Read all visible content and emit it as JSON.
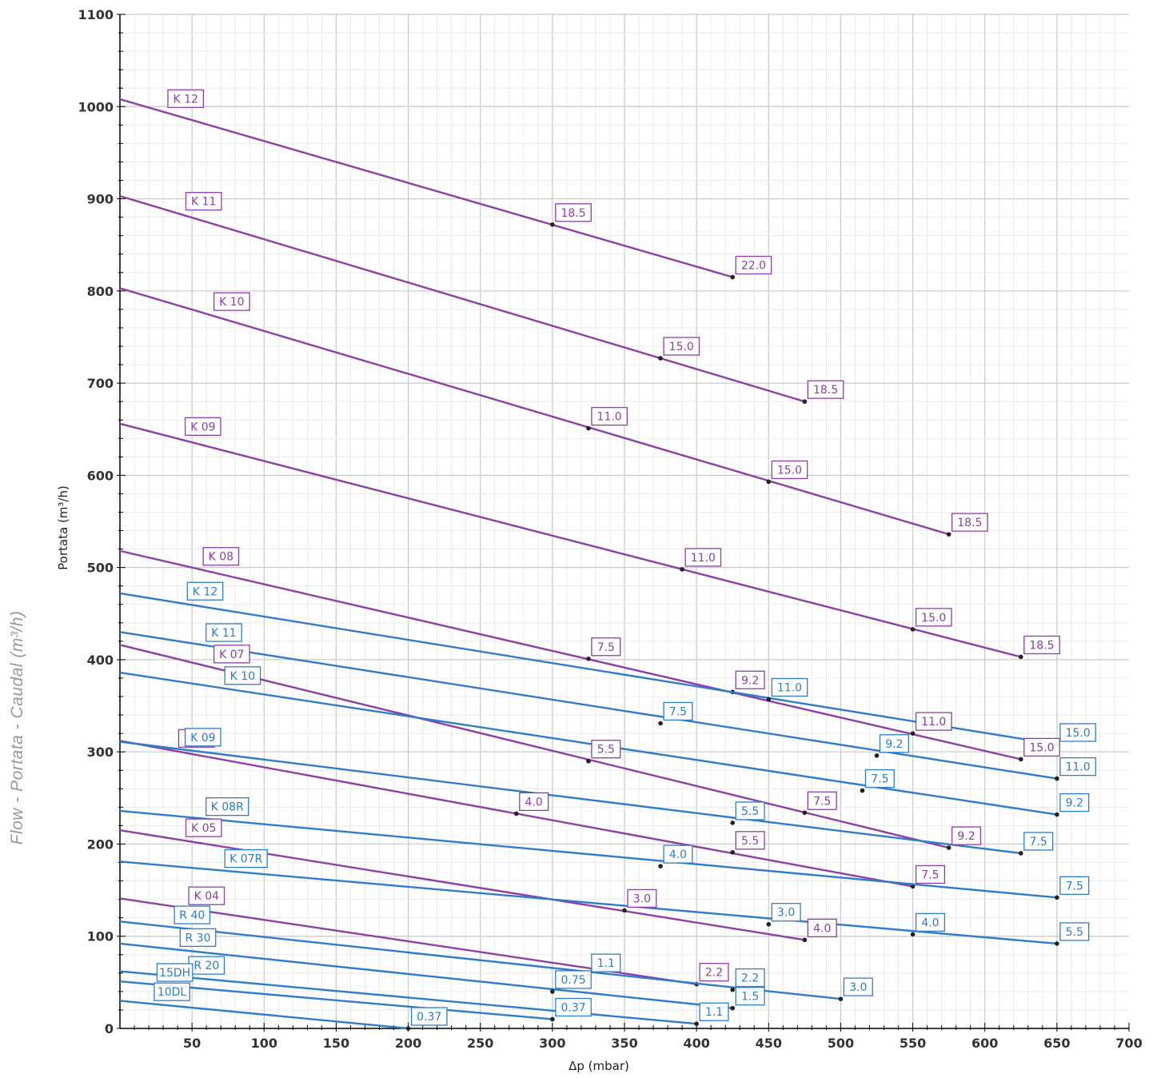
{
  "side_caption": "Flow - Portata - Caudal (m³/h)",
  "colors": {
    "purple": "#8e3fa6",
    "blue": "#2f7dc8",
    "grid_major": "#c9c9c9",
    "grid_minor": "#e6e6e6"
  },
  "chart_data": {
    "type": "line",
    "xlabel": "Δp (mbar)",
    "ylabel": "Portata (m³/h)",
    "xlim": [
      0,
      700
    ],
    "ylim": [
      0,
      1100
    ],
    "x_ticks": [
      50,
      100,
      150,
      200,
      250,
      300,
      350,
      400,
      450,
      500,
      550,
      600,
      650,
      700
    ],
    "y_ticks": [
      0,
      100,
      200,
      300,
      400,
      500,
      600,
      700,
      800,
      900,
      1000,
      1100
    ],
    "grid": true,
    "series": [
      {
        "name": "K 12",
        "color": "purple",
        "x": [
          0,
          425
        ],
        "y": [
          1008,
          815
        ],
        "points": [
          {
            "x": 300,
            "y": 872,
            "label": "18.5"
          },
          {
            "x": 425,
            "y": 815,
            "label": "22.0"
          }
        ]
      },
      {
        "name": "K 11",
        "color": "purple",
        "x": [
          0,
          475
        ],
        "y": [
          903,
          680
        ],
        "points": [
          {
            "x": 375,
            "y": 727,
            "label": "15.0"
          },
          {
            "x": 475,
            "y": 680,
            "label": "18.5"
          }
        ]
      },
      {
        "name": "K 10",
        "color": "purple",
        "x": [
          0,
          575
        ],
        "y": [
          803,
          536
        ],
        "points": [
          {
            "x": 325,
            "y": 651,
            "label": "11.0"
          },
          {
            "x": 450,
            "y": 593,
            "label": "15.0"
          },
          {
            "x": 575,
            "y": 536,
            "label": "18.5"
          }
        ]
      },
      {
        "name": "K 09",
        "color": "purple",
        "x": [
          0,
          625
        ],
        "y": [
          656,
          403
        ],
        "points": [
          {
            "x": 390,
            "y": 498,
            "label": "11.0"
          },
          {
            "x": 550,
            "y": 433,
            "label": "15.0"
          },
          {
            "x": 625,
            "y": 403,
            "label": "18.5"
          }
        ]
      },
      {
        "name": "K 08",
        "color": "purple",
        "x": [
          0,
          625
        ],
        "y": [
          518,
          292
        ],
        "points": [
          {
            "x": 325,
            "y": 401,
            "label": "7.5"
          },
          {
            "x": 425,
            "y": 365,
            "label": "9.2"
          },
          {
            "x": 550,
            "y": 320,
            "label": "11.0"
          },
          {
            "x": 625,
            "y": 292,
            "label": "15.0"
          }
        ]
      },
      {
        "name": "K 07",
        "color": "purple",
        "x": [
          0,
          575
        ],
        "y": [
          416,
          196
        ],
        "points": [
          {
            "x": 325,
            "y": 290,
            "label": "5.5"
          },
          {
            "x": 475,
            "y": 234,
            "label": "7.5"
          },
          {
            "x": 575,
            "y": 196,
            "label": "9.2"
          }
        ]
      },
      {
        "name": "K 06",
        "color": "purple",
        "x": [
          0,
          550
        ],
        "y": [
          312,
          154
        ],
        "points": [
          {
            "x": 275,
            "y": 233,
            "label": "4.0"
          },
          {
            "x": 425,
            "y": 191,
            "label": "5.5"
          },
          {
            "x": 550,
            "y": 154,
            "label": "7.5"
          }
        ]
      },
      {
        "name": "K 05",
        "color": "purple",
        "x": [
          0,
          475
        ],
        "y": [
          215,
          96
        ],
        "points": [
          {
            "x": 350,
            "y": 128,
            "label": "3.0"
          },
          {
            "x": 475,
            "y": 96,
            "label": "4.0"
          }
        ]
      },
      {
        "name": "K 04",
        "color": "purple",
        "x": [
          0,
          400
        ],
        "y": [
          141,
          48
        ],
        "points": [
          {
            "x": 400,
            "y": 48,
            "label": "2.2"
          }
        ]
      },
      {
        "name": "K 12",
        "color": "blue",
        "x": [
          0,
          650
        ],
        "y": [
          472,
          308
        ],
        "points": [
          {
            "x": 450,
            "y": 357,
            "label": "11.0"
          },
          {
            "x": 650,
            "y": 308,
            "label": "15.0"
          }
        ]
      },
      {
        "name": "K 11",
        "color": "blue",
        "x": [
          0,
          650
        ],
        "y": [
          430,
          271
        ],
        "points": [
          {
            "x": 375,
            "y": 331,
            "label": "7.5"
          },
          {
            "x": 525,
            "y": 296,
            "label": "9.2"
          },
          {
            "x": 650,
            "y": 271,
            "label": "11.0"
          }
        ]
      },
      {
        "name": "K 10",
        "color": "blue",
        "x": [
          0,
          650
        ],
        "y": [
          386,
          232
        ],
        "points": [
          {
            "x": 515,
            "y": 258,
            "label": "7.5"
          },
          {
            "x": 650,
            "y": 232,
            "label": "9.2"
          }
        ]
      },
      {
        "name": "K 09",
        "color": "blue",
        "x": [
          0,
          625
        ],
        "y": [
          311,
          190
        ],
        "points": [
          {
            "x": 425,
            "y": 223,
            "label": "5.5"
          },
          {
            "x": 625,
            "y": 190,
            "label": "7.5"
          }
        ]
      },
      {
        "name": "K 08R",
        "color": "blue",
        "x": [
          0,
          650
        ],
        "y": [
          236,
          142
        ],
        "points": [
          {
            "x": 375,
            "y": 176,
            "label": "4.0"
          },
          {
            "x": 650,
            "y": 142,
            "label": "7.5"
          }
        ]
      },
      {
        "name": "K 07R",
        "color": "blue",
        "x": [
          0,
          650
        ],
        "y": [
          181,
          92
        ],
        "points": [
          {
            "x": 450,
            "y": 113,
            "label": "3.0"
          },
          {
            "x": 550,
            "y": 102,
            "label": "4.0"
          },
          {
            "x": 650,
            "y": 92,
            "label": "5.5"
          }
        ]
      },
      {
        "name": "R 40",
        "color": "blue",
        "x": [
          0,
          500
        ],
        "y": [
          116,
          32
        ],
        "points": [
          {
            "x": 325,
            "y": 58,
            "label": "1.1"
          },
          {
            "x": 425,
            "y": 42,
            "label": "2.2"
          },
          {
            "x": 500,
            "y": 32,
            "label": "3.0"
          }
        ]
      },
      {
        "name": "R 30",
        "color": "blue",
        "x": [
          0,
          425
        ],
        "y": [
          92,
          22
        ],
        "points": [
          {
            "x": 300,
            "y": 40,
            "label": "0.75"
          },
          {
            "x": 425,
            "y": 22,
            "label": "1.5"
          }
        ]
      },
      {
        "name": "R 20",
        "color": "blue",
        "x": [
          0,
          400
        ],
        "y": [
          62,
          5
        ],
        "points": [
          {
            "x": 400,
            "y": 5,
            "label": "1.1"
          }
        ]
      },
      {
        "name": "15DH",
        "color": "blue",
        "x": [
          0,
          300
        ],
        "y": [
          51,
          10
        ],
        "points": [
          {
            "x": 300,
            "y": 10,
            "label": "0.37"
          }
        ]
      },
      {
        "name": "10DL",
        "color": "blue",
        "x": [
          0,
          200
        ],
        "y": [
          30,
          0
        ],
        "points": [
          {
            "x": 200,
            "y": 0,
            "label": "0.37"
          }
        ]
      }
    ]
  }
}
